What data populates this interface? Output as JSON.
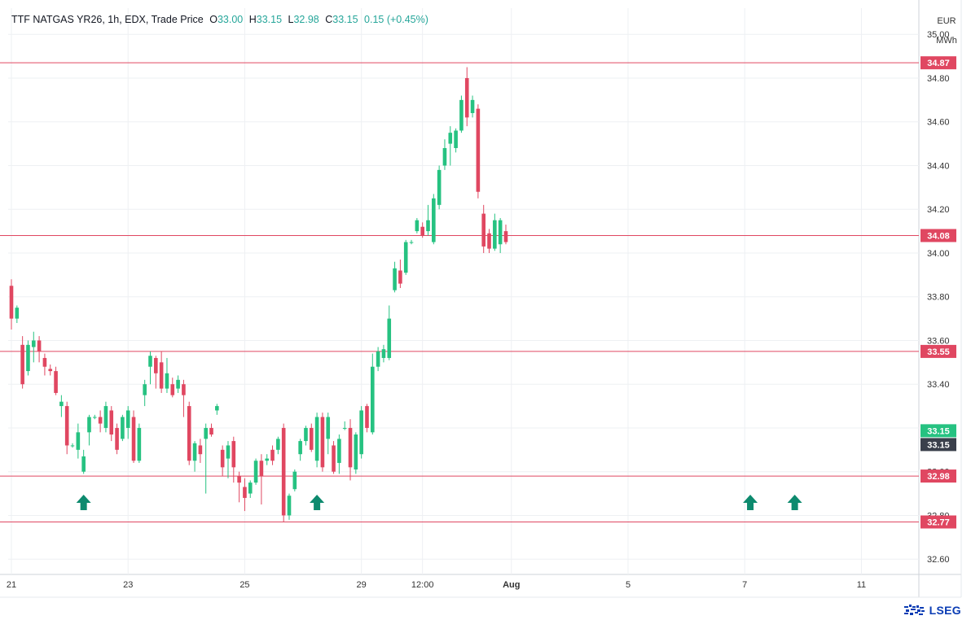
{
  "header": {
    "symbol": "TTF NATGAS YR26, 1h, EDX, Trade Price",
    "o_label": "O",
    "o_value": "33.00",
    "h_label": "H",
    "h_value": "33.15",
    "l_label": "L",
    "l_value": "32.98",
    "c_label": "C",
    "c_value": "33.15",
    "change": "0.15 (+0.45%)"
  },
  "axis_unit": {
    "currency": "EUR",
    "unit": "MWh"
  },
  "brand": {
    "name": "LSEG"
  },
  "colors": {
    "up": "#26c281",
    "down": "#e04761",
    "level_line": "#e04761",
    "arrow": "#0d8a6e",
    "grid": "#eef0f3"
  },
  "chart_data": {
    "type": "candlestick",
    "ylim": [
      32.53,
      35.12
    ],
    "yticks": [
      32.6,
      32.8,
      33.0,
      33.2,
      33.4,
      33.6,
      33.8,
      34.0,
      34.2,
      34.4,
      34.6,
      34.8,
      35.0
    ],
    "xticks": [
      {
        "label": "21",
        "i": 0
      },
      {
        "label": "23",
        "i": 21
      },
      {
        "label": "25",
        "i": 42
      },
      {
        "label": "29",
        "i": 63
      },
      {
        "label": "12:00",
        "i": 74
      },
      {
        "label": "Aug",
        "i": 90
      },
      {
        "label": "5",
        "i": 111
      },
      {
        "label": "7",
        "i": 132
      },
      {
        "label": "11",
        "i": 153
      }
    ],
    "price_levels": [
      34.87,
      34.08,
      33.55,
      32.98,
      32.77
    ],
    "last_price": 33.15,
    "marker_arrows_at": [
      13,
      55,
      133,
      141
    ],
    "candles": [
      [
        33.85,
        33.7,
        33.88,
        33.65
      ],
      [
        33.7,
        33.75,
        33.76,
        33.68
      ],
      [
        33.58,
        33.4,
        33.62,
        33.38
      ],
      [
        33.46,
        33.58,
        33.6,
        33.44
      ],
      [
        33.57,
        33.6,
        33.64,
        33.5
      ],
      [
        33.6,
        33.55,
        33.62,
        33.5
      ],
      [
        33.52,
        33.48,
        33.54,
        33.44
      ],
      [
        33.47,
        33.46,
        33.49,
        33.44
      ],
      [
        33.46,
        33.36,
        33.48,
        33.35
      ],
      [
        33.3,
        33.32,
        33.35,
        33.25
      ],
      [
        33.3,
        33.12,
        33.32,
        33.08
      ],
      [
        33.12,
        33.12,
        33.13,
        33.11
      ],
      [
        33.1,
        33.18,
        33.22,
        33.06
      ],
      [
        33.0,
        33.07,
        33.1,
        32.99
      ],
      [
        33.18,
        33.25,
        33.26,
        33.12
      ],
      [
        33.25,
        33.25,
        33.26,
        33.24
      ],
      [
        33.25,
        33.22,
        33.28,
        33.18
      ],
      [
        33.2,
        33.3,
        33.32,
        33.18
      ],
      [
        33.28,
        33.17,
        33.3,
        33.14
      ],
      [
        33.2,
        33.1,
        33.22,
        33.08
      ],
      [
        33.15,
        33.25,
        33.26,
        33.14
      ],
      [
        33.2,
        33.28,
        33.3,
        33.15
      ],
      [
        33.25,
        33.05,
        33.28,
        33.04
      ],
      [
        33.05,
        33.2,
        33.22,
        33.04
      ],
      [
        33.35,
        33.4,
        33.42,
        33.3
      ],
      [
        33.48,
        33.53,
        33.55,
        33.4
      ],
      [
        33.52,
        33.45,
        33.53,
        33.38
      ],
      [
        33.5,
        33.38,
        33.55,
        33.36
      ],
      [
        33.38,
        33.45,
        33.52,
        33.36
      ],
      [
        33.4,
        33.35,
        33.43,
        33.34
      ],
      [
        33.38,
        33.42,
        33.44,
        33.36
      ],
      [
        33.4,
        33.35,
        33.42,
        33.25
      ],
      [
        33.3,
        33.05,
        33.32,
        33.03
      ],
      [
        33.05,
        33.13,
        33.14,
        33.0
      ],
      [
        33.12,
        33.08,
        33.15,
        33.04
      ],
      [
        33.15,
        33.2,
        33.22,
        32.9
      ],
      [
        33.2,
        33.17,
        33.22,
        33.16
      ],
      [
        33.28,
        33.3,
        33.31,
        33.26
      ],
      [
        33.1,
        33.02,
        33.12,
        32.98
      ],
      [
        33.06,
        33.12,
        33.14,
        32.97
      ],
      [
        33.14,
        33.02,
        33.16,
        32.95
      ],
      [
        32.98,
        32.95,
        33.0,
        32.86
      ],
      [
        32.93,
        32.88,
        32.97,
        32.82
      ],
      [
        32.9,
        32.95,
        32.96,
        32.88
      ],
      [
        32.95,
        33.05,
        33.06,
        32.94
      ],
      [
        33.05,
        32.98,
        33.08,
        32.85
      ],
      [
        33.05,
        33.06,
        33.08,
        33.03
      ],
      [
        33.1,
        33.05,
        33.12,
        33.03
      ],
      [
        33.1,
        33.15,
        33.16,
        33.08
      ],
      [
        33.2,
        32.8,
        33.22,
        32.77
      ],
      [
        32.8,
        32.89,
        32.9,
        32.78
      ],
      [
        32.92,
        33.0,
        33.01,
        32.91
      ],
      [
        33.08,
        33.14,
        33.15,
        33.05
      ],
      [
        33.14,
        33.2,
        33.21,
        33.12
      ],
      [
        33.2,
        33.1,
        33.22,
        33.09
      ],
      [
        33.05,
        33.25,
        33.27,
        33.02
      ],
      [
        33.25,
        33.02,
        33.27,
        33.0
      ],
      [
        33.15,
        33.25,
        33.27,
        33.08
      ],
      [
        33.12,
        33.0,
        33.14,
        32.99
      ],
      [
        33.04,
        33.15,
        33.17,
        32.99
      ],
      [
        33.2,
        33.2,
        33.23,
        33.19
      ],
      [
        33.2,
        33.02,
        33.24,
        32.96
      ],
      [
        33.01,
        33.17,
        33.18,
        32.99
      ],
      [
        33.08,
        33.28,
        33.3,
        33.06
      ],
      [
        33.3,
        33.2,
        33.31,
        33.18
      ],
      [
        33.18,
        33.48,
        33.54,
        33.17
      ],
      [
        33.48,
        33.55,
        33.57,
        33.46
      ],
      [
        33.52,
        33.56,
        33.58,
        33.5
      ],
      [
        33.52,
        33.7,
        33.76,
        33.51
      ],
      [
        33.83,
        33.93,
        33.96,
        33.82
      ],
      [
        33.92,
        33.86,
        33.97,
        33.84
      ],
      [
        33.91,
        34.05,
        34.06,
        33.9
      ],
      [
        34.05,
        34.05,
        34.06,
        34.04
      ],
      [
        34.1,
        34.15,
        34.16,
        34.09
      ],
      [
        34.12,
        34.08,
        34.14,
        34.07
      ],
      [
        34.1,
        34.15,
        34.22,
        34.08
      ],
      [
        34.05,
        34.25,
        34.27,
        34.04
      ],
      [
        34.22,
        34.38,
        34.4,
        34.2
      ],
      [
        34.4,
        34.48,
        34.52,
        34.38
      ],
      [
        34.5,
        34.55,
        34.58,
        34.4
      ],
      [
        34.48,
        34.56,
        34.57,
        34.46
      ],
      [
        34.56,
        34.7,
        34.72,
        34.55
      ],
      [
        34.8,
        34.62,
        34.85,
        34.58
      ],
      [
        34.64,
        34.7,
        34.72,
        34.62
      ],
      [
        34.66,
        34.28,
        34.68,
        34.25
      ],
      [
        34.18,
        34.03,
        34.22,
        34.0
      ],
      [
        34.09,
        34.02,
        34.11,
        34.0
      ],
      [
        34.02,
        34.15,
        34.18,
        34.01
      ],
      [
        34.04,
        34.15,
        34.16,
        34.0
      ],
      [
        34.1,
        34.05,
        34.13,
        34.04
      ]
    ]
  }
}
